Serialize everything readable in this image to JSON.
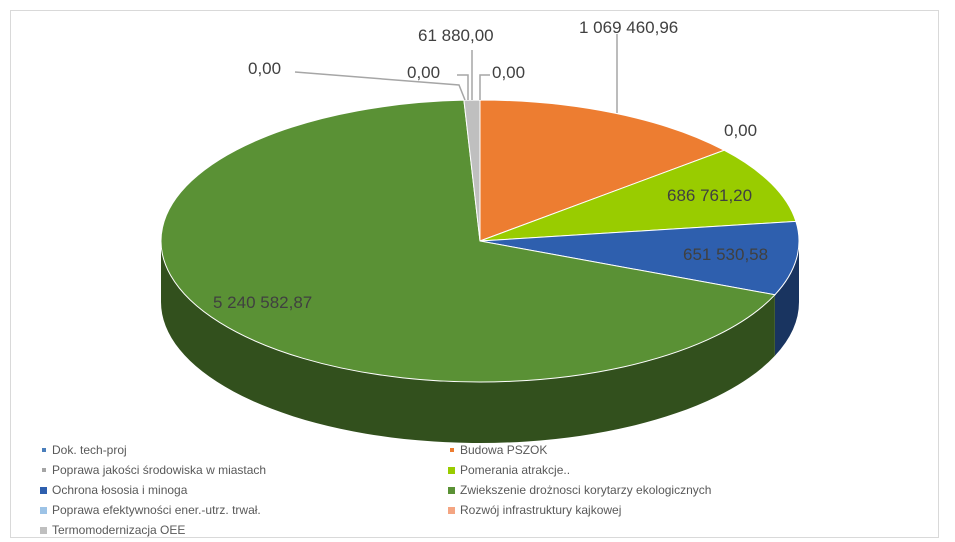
{
  "chart_data": {
    "type": "pie",
    "style": "3d-pie",
    "start_angle_deg": 90,
    "direction": "clockwise",
    "slices": [
      {
        "label": "Dok. tech-proj",
        "value": 0.0,
        "display": "0,00",
        "color": "#4a7ebb"
      },
      {
        "label": "Budowa PSZOK",
        "value": 1069460.96,
        "display": "1 069 460,96",
        "color": "#ed7d31"
      },
      {
        "label": "Rozwój infrastruktury kajkowej",
        "value": 0.0,
        "display": "0,00",
        "color": "#f4a582"
      },
      {
        "label": "Pomerania atrakcje..",
        "value": 686761.2,
        "display": "686 761,20",
        "color": "#99cc00"
      },
      {
        "label": "Ochrona łososia i minoga",
        "value": 651530.58,
        "display": "651 530,58",
        "color": "#2e5fae"
      },
      {
        "label": "Zwiekszenie drożnosci korytarzy ekologicznych",
        "value": 5240582.87,
        "display": "5 240 582,87",
        "color": "#5a9135"
      },
      {
        "label": "Poprawa efektywności ener.-utrz. trwał.",
        "value": 0.0,
        "display": "0,00",
        "color": "#9dc3e6"
      },
      {
        "label": "Termomodernizacja OEE",
        "value": 61880.0,
        "display": "61 880,00",
        "color": "#bfbfbf"
      },
      {
        "label": "Poprawa jakości środowiska w miastach",
        "value": 0.0,
        "display": "0,00",
        "color": "#a5a5a5"
      }
    ],
    "legend": {
      "position": "bottom",
      "rows": [
        [
          {
            "label": "Dok. tech-proj",
            "color": "#4a7ebb",
            "small": true
          },
          {
            "label": "Budowa PSZOK",
            "color": "#ed7d31",
            "small": true
          }
        ],
        [
          {
            "label": "Poprawa jakości środowiska w miastach",
            "color": "#a5a5a5",
            "small": true
          },
          {
            "label": "Pomerania atrakcje..",
            "color": "#99cc00",
            "small": false
          }
        ],
        [
          {
            "label": "Ochrona łososia i minoga",
            "color": "#2e5fae",
            "small": false
          },
          {
            "label": "Zwiekszenie drożnosci korytarzy ekologicznych",
            "color": "#5a9135",
            "small": false
          }
        ],
        [
          {
            "label": "Poprawa efektywności ener.-utrz. trwał.",
            "color": "#9dc3e6",
            "small": false
          },
          {
            "label": "Rozwój infrastruktury kajkowej",
            "color": "#f4a582",
            "small": false
          }
        ],
        [
          {
            "label": "Termomodernizacja OEE",
            "color": "#bfbfbf",
            "small": false
          }
        ]
      ]
    }
  }
}
